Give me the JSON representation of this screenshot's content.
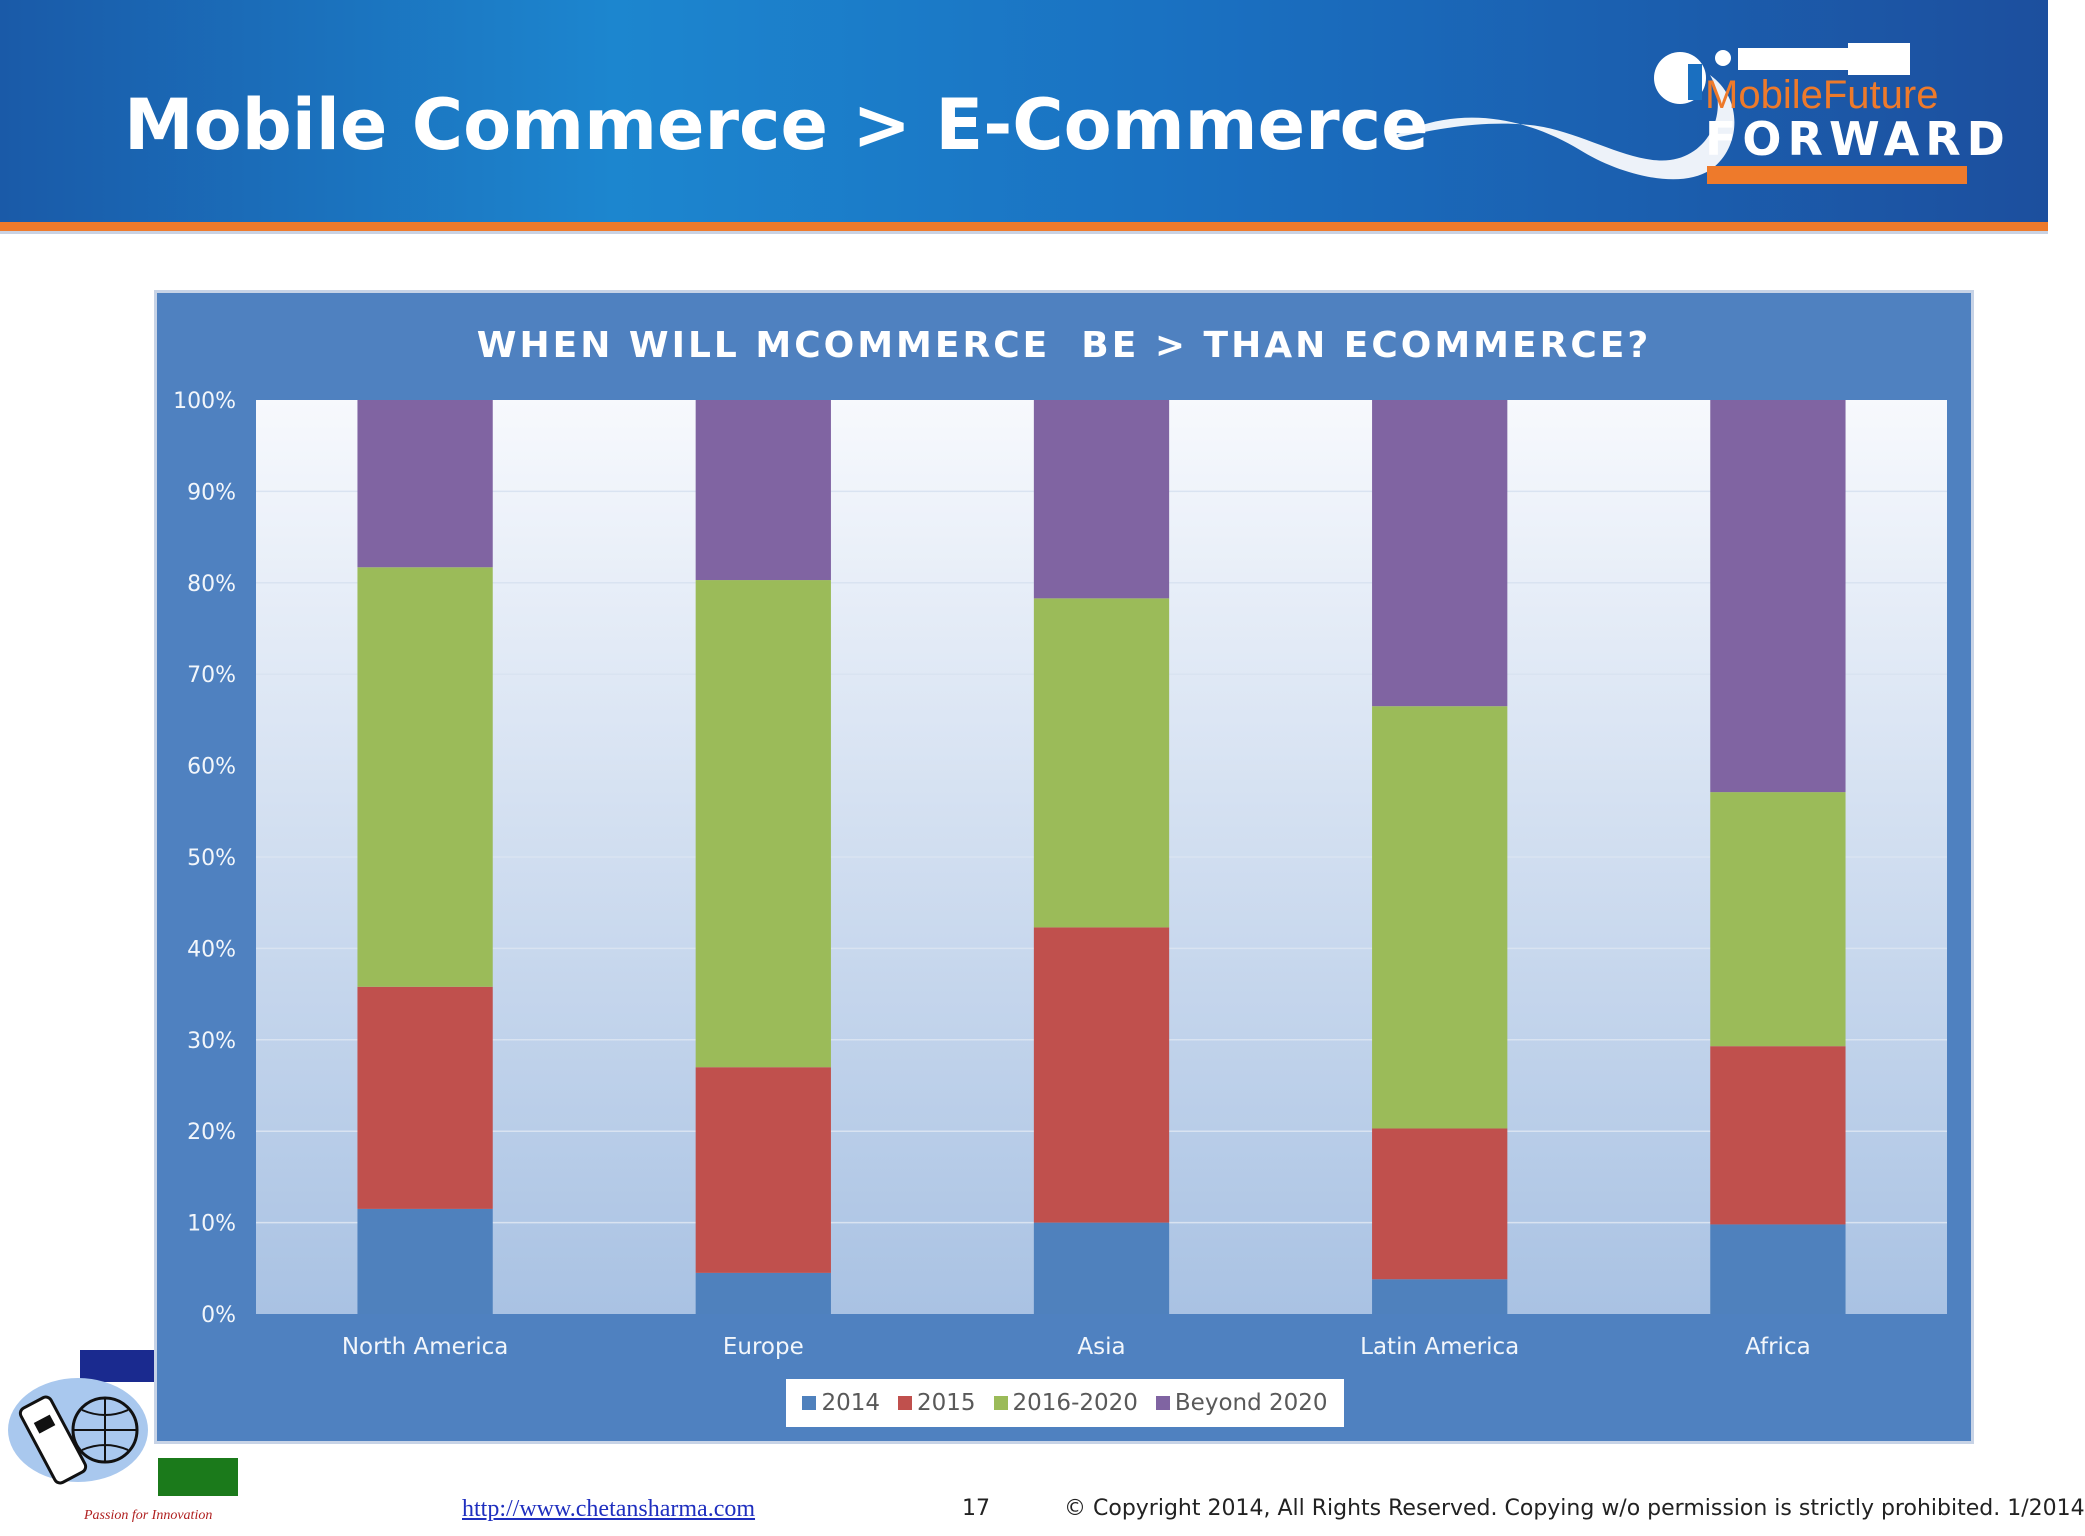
{
  "slide": {
    "title": "Mobile Commerce > E-Commerce",
    "logo": {
      "line1": "MobileFuture",
      "line2": "FORWARD"
    },
    "footer": {
      "url": "http://www.chetansharma.com",
      "page": "17",
      "copyright": "© Copyright 2014, All Rights Reserved. Copying w/o permission is strictly prohibited. 1/2014",
      "tagline": "Passion for Innovation"
    }
  },
  "chart_data": {
    "type": "bar",
    "stacked": true,
    "normalized": true,
    "title": "WHEN WILL MCOMMERCE  BE > THAN ECOMMERCE?",
    "xlabel": "",
    "ylabel": "",
    "ylim": [
      0,
      100
    ],
    "y_ticks": [
      "0%",
      "10%",
      "20%",
      "30%",
      "40%",
      "50%",
      "60%",
      "70%",
      "80%",
      "90%",
      "100%"
    ],
    "categories": [
      "North America",
      "Europe",
      "Asia",
      "Latin America",
      "Africa"
    ],
    "series": [
      {
        "name": "2014",
        "color": "#4f81bd",
        "values": [
          11.5,
          4.5,
          10,
          3.8,
          9.8
        ]
      },
      {
        "name": "2015",
        "color": "#c0504d",
        "values": [
          24.3,
          22.5,
          32.3,
          16.5,
          19.5
        ]
      },
      {
        "name": "2016-2020",
        "color": "#9bbb59",
        "values": [
          45.9,
          53.3,
          36,
          46.2,
          27.8
        ]
      },
      {
        "name": "Beyond 2020",
        "color": "#8064a2",
        "values": [
          18.3,
          19.7,
          21.7,
          33.5,
          42.9
        ]
      }
    ],
    "grid": true,
    "legend_position": "bottom"
  }
}
